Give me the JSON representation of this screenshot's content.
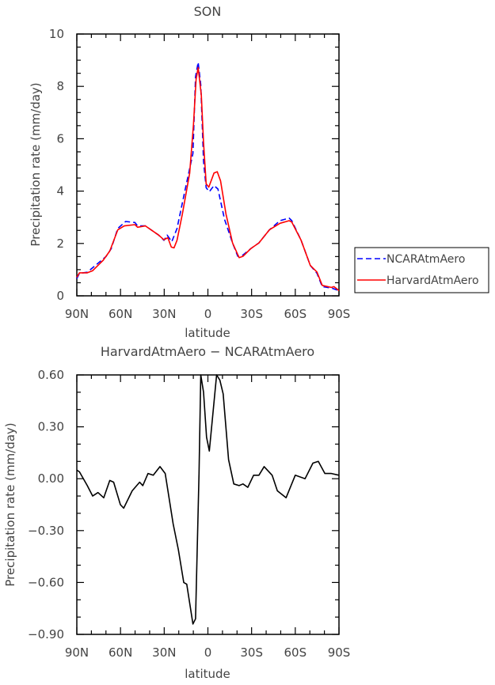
{
  "chart_data": [
    {
      "type": "line",
      "title": "SON",
      "xlabel": "latitude",
      "ylabel": "Precipitation rate (mm/day)",
      "xlim": [
        90,
        -90
      ],
      "ylim": [
        0,
        10
      ],
      "xticks": [
        90,
        60,
        30,
        0,
        -30,
        -60,
        -90
      ],
      "xtick_labels": [
        "90N",
        "60N",
        "30N",
        "0",
        "30S",
        "60S",
        "90S"
      ],
      "yticks": [
        0,
        2,
        4,
        6,
        8,
        10
      ],
      "ytick_labels": [
        "0",
        "2",
        "4",
        "6",
        "8",
        "10"
      ],
      "legend": {
        "placement": "outside-right",
        "entries": [
          "NCARAtmAero",
          "HarvardAtmAero"
        ]
      },
      "series": [
        {
          "name": "NCARAtmAero",
          "color": "#0000ff",
          "style": "dashed",
          "x": [
            90,
            88.2,
            82.8,
            77.3,
            70,
            66.4,
            61.9,
            56.5,
            50.1,
            48.3,
            42.9,
            33.8,
            30.2,
            28,
            24.8,
            21.2,
            15.7,
            10.3,
            8.5,
            6.7,
            4.9,
            3,
            1.2,
            -1,
            -4.2,
            -6.9,
            -11.4,
            -16.9,
            -20.5,
            -24.1,
            -29.6,
            -35,
            -42.2,
            -49.5,
            -55.8,
            -57.6,
            -64,
            -70.3,
            -74.9,
            -78.5,
            -84.8,
            -90
          ],
          "y": [
            0.66,
            0.86,
            0.9,
            1.16,
            1.5,
            1.8,
            2.57,
            2.84,
            2.8,
            2.67,
            2.67,
            2.32,
            2.12,
            2.32,
            2.07,
            2.57,
            4.03,
            5.44,
            8.37,
            8.92,
            8.06,
            5.14,
            4.13,
            3.98,
            4.21,
            4.08,
            2.92,
            2.02,
            1.51,
            1.56,
            1.81,
            2.02,
            2.52,
            2.87,
            2.97,
            2.87,
            2.12,
            1.16,
            0.86,
            0.35,
            0.3,
            0.2
          ]
        },
        {
          "name": "HarvardAtmAero",
          "color": "#ff0000",
          "style": "solid",
          "x": [
            90,
            88.2,
            82.8,
            79.1,
            71.9,
            67.4,
            61.9,
            57.4,
            50.1,
            48.3,
            42.9,
            33.8,
            30.2,
            27.5,
            25.1,
            23.3,
            21.2,
            17.5,
            12.5,
            9.9,
            8.1,
            6.7,
            4.5,
            3,
            1.2,
            -0.6,
            -4.2,
            -6.4,
            -8.7,
            -12.4,
            -16.9,
            -21.4,
            -24.1,
            -29.6,
            -35,
            -42.2,
            -49.5,
            -55.8,
            -57.6,
            -64,
            -70.3,
            -74.9,
            -78.5,
            -84.8,
            -86.6,
            -90
          ],
          "y": [
            0.71,
            0.88,
            0.88,
            0.96,
            1.36,
            1.71,
            2.52,
            2.67,
            2.72,
            2.62,
            2.67,
            2.32,
            2.14,
            2.22,
            1.86,
            1.83,
            2.12,
            3.13,
            4.69,
            6.55,
            8.27,
            8.72,
            7.66,
            5.85,
            4.28,
            4.15,
            4.69,
            4.74,
            4.39,
            3.13,
            2.02,
            1.46,
            1.51,
            1.81,
            2.02,
            2.52,
            2.77,
            2.87,
            2.82,
            2.12,
            1.16,
            0.91,
            0.4,
            0.32,
            0.35,
            0.2
          ]
        }
      ]
    },
    {
      "type": "line",
      "title": "HarvardAtmAero − NCARAtmAero",
      "xlabel": "latitude",
      "ylabel": "Precipitation rate (mm/day)",
      "xlim": [
        90,
        -90
      ],
      "ylim": [
        -0.9,
        0.6
      ],
      "xticks": [
        90,
        60,
        30,
        0,
        -30,
        -60,
        -90
      ],
      "xtick_labels": [
        "90N",
        "60N",
        "30N",
        "0",
        "30S",
        "60S",
        "90S"
      ],
      "yticks": [
        0.6,
        0.3,
        0,
        -0.3,
        -0.6,
        -0.9
      ],
      "ytick_labels": [
        "0.60",
        "0.30",
        "0.00",
        "−0.30",
        "−0.60",
        "−0.90"
      ],
      "series": [
        {
          "name": "difference",
          "color": "#000000",
          "style": "solid",
          "x": [
            90,
            88.2,
            82.8,
            79.1,
            75.5,
            71.5,
            67.4,
            64.7,
            60.1,
            57.8,
            52,
            46.9,
            44.7,
            41.1,
            37.5,
            32.9,
            29.3,
            23.9,
            20.3,
            16.6,
            14.5,
            10.3,
            8.5,
            6.1,
            4.9,
            3,
            0.9,
            -1,
            -6,
            -8.2,
            -10.5,
            -14.2,
            -17.8,
            -21.4,
            -24.1,
            -27.4,
            -31.4,
            -35,
            -38.6,
            -44.1,
            -47.7,
            -53.7,
            -60,
            -66.7,
            -72.1,
            -75.8,
            -80.3,
            -84.8,
            -90
          ],
          "y": [
            0.05,
            0.04,
            -0.04,
            -0.1,
            -0.08,
            -0.11,
            -0.01,
            -0.02,
            -0.15,
            -0.17,
            -0.07,
            -0.02,
            -0.04,
            0.03,
            0.02,
            0.07,
            0.03,
            -0.26,
            -0.41,
            -0.6,
            -0.61,
            -0.84,
            -0.81,
            0.03,
            0.6,
            0.5,
            0.24,
            0.16,
            0.6,
            0.57,
            0.49,
            0.11,
            -0.03,
            -0.04,
            -0.03,
            -0.05,
            0.02,
            0.02,
            0.07,
            0.02,
            -0.07,
            -0.11,
            0.02,
            0.0,
            0.09,
            0.1,
            0.03,
            0.03,
            0.02
          ]
        }
      ]
    }
  ]
}
